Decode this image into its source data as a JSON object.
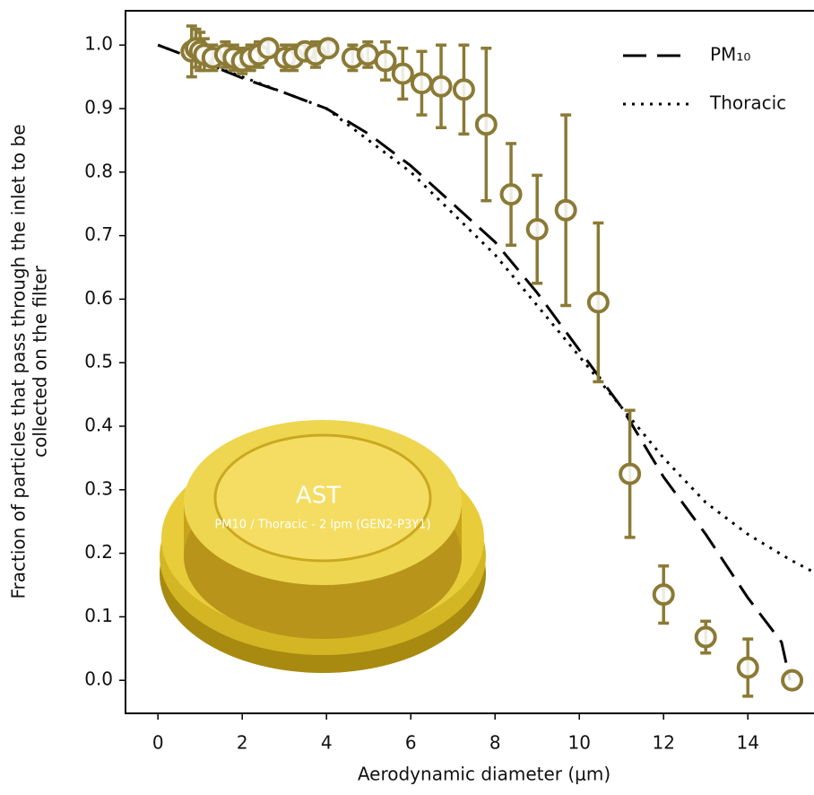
{
  "chart_data": {
    "type": "line",
    "xlabel": "Aerodynamic diameter (μm)",
    "ylabel": [
      "Fraction of particles that pass through the inlet to be",
      "collected on the filter"
    ],
    "inset_labels": [
      "AST",
      "PM10 / Thoracic - 2 lpm (GEN2-P3Y1)"
    ],
    "xlim": [
      -0.77,
      15.57
    ],
    "ylim": [
      -0.052,
      1.054
    ],
    "xticks": [
      0,
      2,
      4,
      6,
      8,
      10,
      12,
      14
    ],
    "yticks": [
      {
        "value": 0,
        "label": "0.0"
      },
      0.1,
      0.2,
      0.3,
      0.4,
      0.5,
      0.6,
      0.7,
      0.8,
      0.9,
      {
        "value": 1,
        "label": "1.0"
      }
    ],
    "legend": "upper right",
    "series": [
      {
        "name": "PM₁₀",
        "color": "#000000",
        "style": "dashed",
        "x": [
          0,
          1,
          2,
          3,
          4,
          5,
          6,
          7,
          8,
          9,
          10,
          11,
          12,
          13,
          14,
          14.8,
          15
        ],
        "values": [
          1.0,
          0.975,
          0.948,
          0.925,
          0.9,
          0.86,
          0.81,
          0.75,
          0.69,
          0.61,
          0.52,
          0.43,
          0.32,
          0.23,
          0.13,
          0.06,
          0.0
        ]
      },
      {
        "name": "Thoracic",
        "color": "#000000",
        "style": "dotted",
        "x": [
          0,
          2,
          4,
          6,
          8,
          9,
          10,
          11,
          12,
          13,
          14,
          15,
          15.57
        ],
        "values": [
          1.0,
          0.95,
          0.9,
          0.8,
          0.67,
          0.59,
          0.51,
          0.43,
          0.35,
          0.28,
          0.23,
          0.19,
          0.17
        ]
      },
      {
        "color": "#8b7a35",
        "style": "markers",
        "x": [
          0.8,
          0.9,
          1.0,
          1.1,
          1.3,
          1.6,
          1.8,
          2.0,
          2.2,
          2.4,
          2.62,
          3.02,
          3.21,
          3.49,
          3.74,
          4.04,
          4.62,
          4.98,
          5.4,
          5.81,
          6.26,
          6.72,
          7.26,
          7.79,
          8.38,
          9.0,
          9.68,
          10.45,
          11.2,
          12.0,
          13.0,
          14.0,
          15.05
        ],
        "values": [
          0.99,
          0.995,
          0.99,
          0.985,
          0.98,
          0.985,
          0.98,
          0.975,
          0.98,
          0.985,
          0.995,
          0.98,
          0.98,
          0.99,
          0.985,
          0.995,
          0.98,
          0.985,
          0.975,
          0.955,
          0.94,
          0.935,
          0.93,
          0.875,
          0.765,
          0.71,
          0.74,
          0.595,
          0.325,
          0.135,
          0.068,
          0.02,
          0.0
        ],
        "errors": [
          0.04,
          0.03,
          0.03,
          0.025,
          0.02,
          0.02,
          0.02,
          0.02,
          0.02,
          0.02,
          0.01,
          0.02,
          0.02,
          0.01,
          0.02,
          0.01,
          0.02,
          0.02,
          0.03,
          0.04,
          0.05,
          0.065,
          0.07,
          0.12,
          0.08,
          0.085,
          0.15,
          0.125,
          0.1,
          0.045,
          0.025,
          0.045,
          0
        ]
      }
    ]
  }
}
